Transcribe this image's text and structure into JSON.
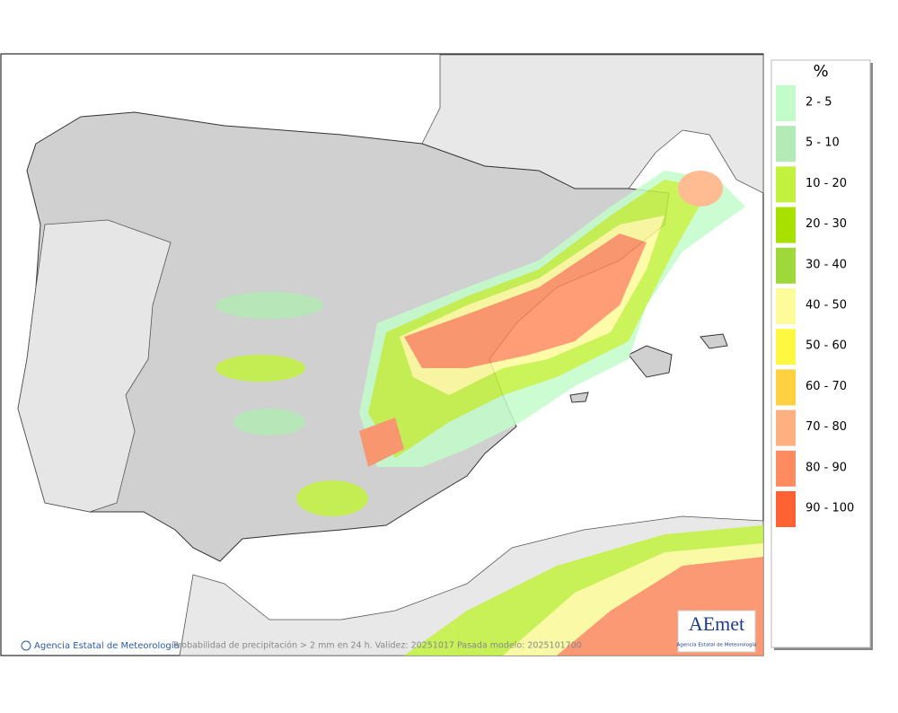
{
  "map": {
    "footer": "Agencia Estatal de Meteorología",
    "caption": "Probabilidad de precipitación > 2 mm en 24 h. Validez: 20251017 Pasada modelo: 2025101700",
    "logo": {
      "name": "AEmet",
      "subtitle": "Agencia Estatal de Meteorología"
    }
  },
  "legend": {
    "title": "%",
    "items": [
      {
        "label": "2 - 5",
        "color": "#c3fccb"
      },
      {
        "label": "5 - 10",
        "color": "#b3eab5"
      },
      {
        "label": "10 - 20",
        "color": "#c3f23e"
      },
      {
        "label": "20 - 30",
        "color": "#a8e000"
      },
      {
        "label": "30 - 40",
        "color": "#9ed83a"
      },
      {
        "label": "40 - 50",
        "color": "#fefc9a"
      },
      {
        "label": "50 - 60",
        "color": "#fff840"
      },
      {
        "label": "60 - 70",
        "color": "#ffd040"
      },
      {
        "label": "70 - 80",
        "color": "#ffb080"
      },
      {
        "label": "80 - 90",
        "color": "#ff8c60"
      },
      {
        "label": "90 - 100",
        "color": "#ff6232"
      }
    ]
  }
}
